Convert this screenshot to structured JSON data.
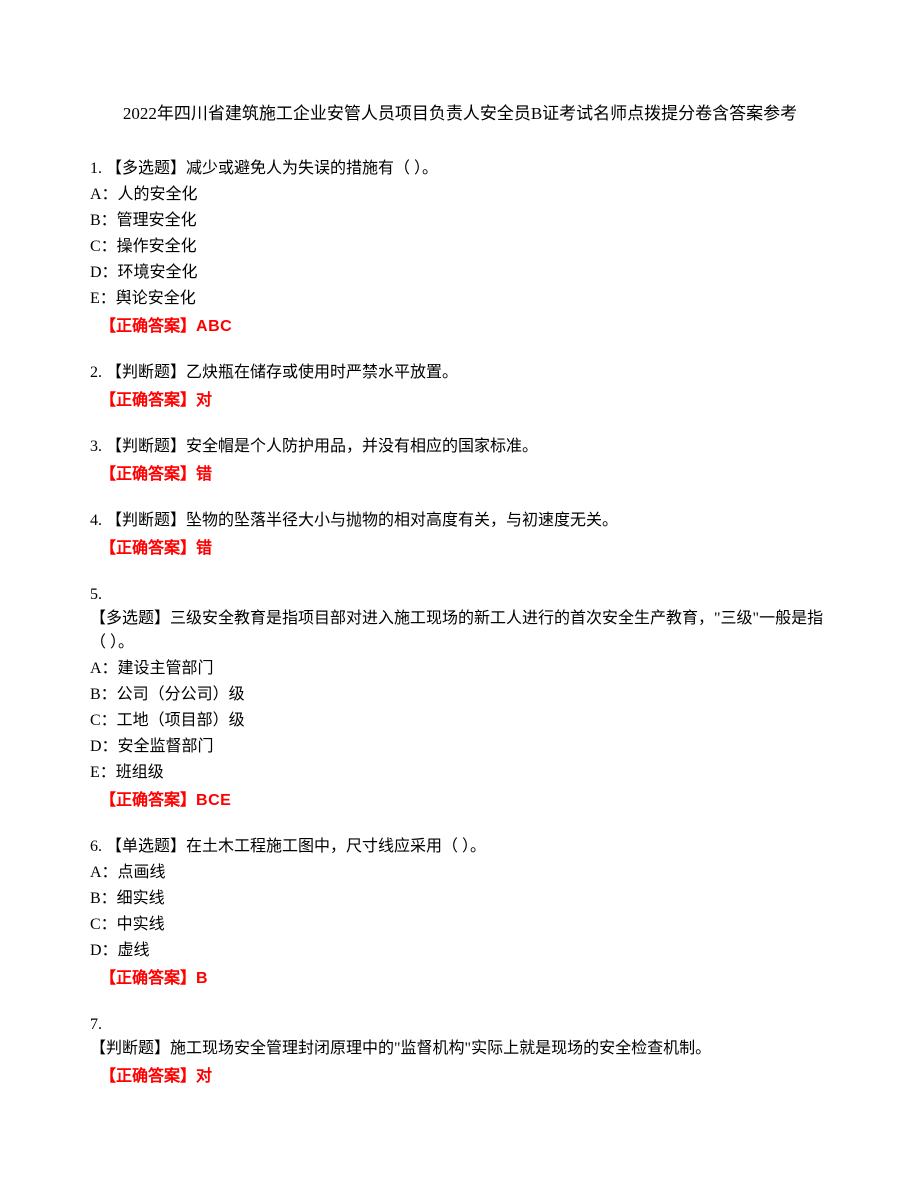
{
  "title": "2022年四川省建筑施工企业安管人员项目负责人安全员B证考试名师点拨提分卷含答案参考",
  "answer_label": "【正确答案】",
  "questions": [
    {
      "num": "1.",
      "type": "【多选题】",
      "text": "减少或避免人为失误的措施有（ ）。",
      "options": [
        "A：人的安全化",
        "B：管理安全化",
        "C：操作安全化",
        "D：环境安全化",
        "E：舆论安全化"
      ],
      "answer": "ABC"
    },
    {
      "num": "2.",
      "type": "【判断题】",
      "text": "乙炔瓶在储存或使用时严禁水平放置。",
      "options": [],
      "answer": "对"
    },
    {
      "num": "3.",
      "type": "【判断题】",
      "text": "安全帽是个人防护用品，并没有相应的国家标准。",
      "options": [],
      "answer": "错"
    },
    {
      "num": "4.",
      "type": "【判断题】",
      "text": "坠物的坠落半径大小与抛物的相对高度有关，与初速度无关。",
      "options": [],
      "answer": "错"
    },
    {
      "num": "5.",
      "type": "【多选题】",
      "text": "三级安全教育是指项目部对进入施工现场的新工人进行的首次安全生产教育，\"三级\"一般是指（ ）。",
      "break_before": true,
      "options": [
        "A：建设主管部门",
        "B：公司（分公司）级",
        "C：工地（项目部）级",
        "D：安全监督部门",
        "E：班组级"
      ],
      "answer": "BCE"
    },
    {
      "num": "6.",
      "type": "【单选题】",
      "text": "在土木工程施工图中，尺寸线应采用（ ）。",
      "options": [
        "A：点画线",
        "B：细实线",
        "C：中实线",
        "D：虚线"
      ],
      "answer": "B"
    },
    {
      "num": "7.",
      "type": "【判断题】",
      "text": "施工现场安全管理封闭原理中的\"监督机构\"实际上就是现场的安全检查机制。",
      "break_before": true,
      "options": [],
      "answer": "对"
    }
  ]
}
